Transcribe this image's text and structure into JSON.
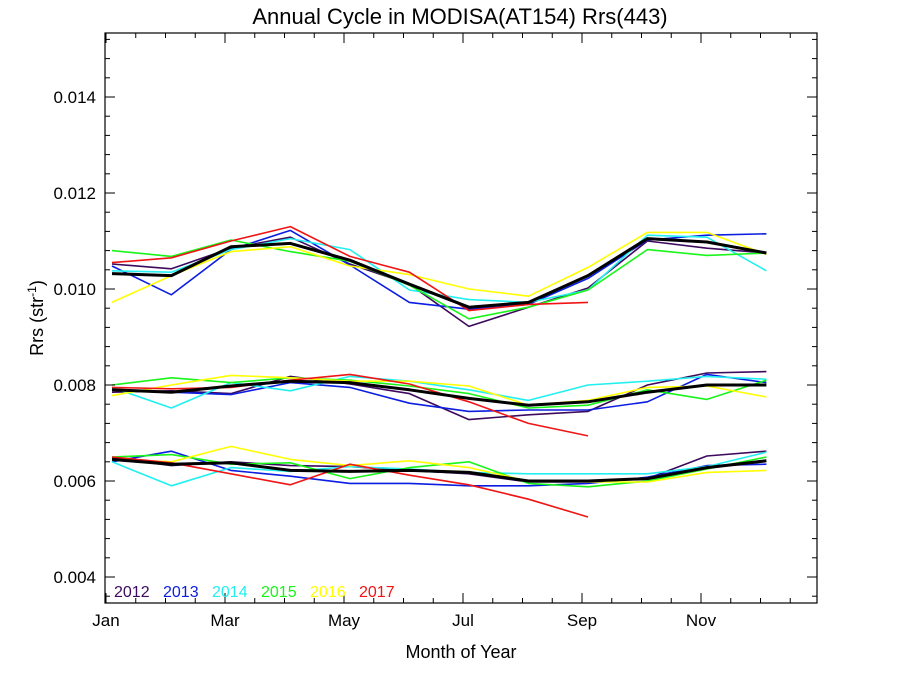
{
  "chart_data": {
    "type": "line",
    "title": "Annual Cycle in MODISA(AT154) Rrs(443)",
    "xlabel": "Month of Year",
    "ylabel": "Rrs (str",
    "ylabel_sup": "-1",
    "ylabel_close": ")",
    "xlim": [
      1,
      12.9
    ],
    "ylim": [
      0.0035,
      0.0153
    ],
    "xticks": [
      {
        "value": 1,
        "label": "Jan"
      },
      {
        "value": 3,
        "label": "Mar"
      },
      {
        "value": 5,
        "label": "May"
      },
      {
        "value": 7,
        "label": "Jul"
      },
      {
        "value": 9,
        "label": "Sep"
      },
      {
        "value": 11,
        "label": "Nov"
      }
    ],
    "yticks": [
      {
        "value": 0.004,
        "label": "0.004"
      },
      {
        "value": 0.006,
        "label": "0.006"
      },
      {
        "value": 0.008,
        "label": "0.008"
      },
      {
        "value": 0.01,
        "label": "0.010"
      },
      {
        "value": 0.012,
        "label": "0.012"
      },
      {
        "value": 0.014,
        "label": "0.014"
      }
    ],
    "grid": false,
    "legend": "bottom-left",
    "x": [
      1.1,
      2.1,
      3.1,
      4.1,
      5.1,
      6.1,
      7.1,
      8.1,
      9.1,
      10.1,
      11.1,
      12.1
    ],
    "groups": [
      {
        "series": [
          {
            "name": "2012",
            "color": "#3d0a5e",
            "values": [
              0.01052,
              0.01042,
              0.01085,
              0.01108,
              0.01052,
              0.0101,
              0.00922,
              0.00962,
              0.01002,
              0.011,
              0.01085,
              0.01075
            ]
          },
          {
            "name": "2013",
            "color": "#0b1de0",
            "values": [
              0.01048,
              0.00988,
              0.01082,
              0.01122,
              0.0105,
              0.00972,
              0.00958,
              0.00968,
              0.01022,
              0.01102,
              0.01112,
              0.01115
            ]
          },
          {
            "name": "2014",
            "color": "#22f0f0",
            "values": [
              0.01038,
              0.01035,
              0.01082,
              0.01105,
              0.01082,
              0.00998,
              0.00978,
              0.00972,
              0.00998,
              0.01112,
              0.01108,
              0.01038
            ]
          },
          {
            "name": "2015",
            "color": "#19f519",
            "values": [
              0.0108,
              0.01068,
              0.01102,
              0.01078,
              0.01058,
              0.01008,
              0.00938,
              0.00962,
              0.00998,
              0.01082,
              0.0107,
              0.01075
            ]
          },
          {
            "name": "2016",
            "color": "#ffff00",
            "values": [
              0.00972,
              0.01028,
              0.01078,
              0.01088,
              0.01048,
              0.0103,
              0.01,
              0.00985,
              0.01045,
              0.01118,
              0.01118,
              0.01072
            ]
          },
          {
            "name": "2017",
            "color": "#f01414",
            "values": [
              0.01055,
              0.01065,
              0.011,
              0.0113,
              0.01068,
              0.01035,
              0.00955,
              0.00968,
              0.00972
            ]
          },
          {
            "name": "",
            "color": "#000000",
            "width": 3,
            "values": [
              0.01032,
              0.01028,
              0.01088,
              0.01095,
              0.0106,
              0.0101,
              0.00962,
              0.00972,
              0.01028,
              0.01105,
              0.01098,
              0.01075
            ]
          }
        ]
      },
      {
        "series": [
          {
            "name": "2012",
            "color": "#3d0a5e",
            "values": [
              0.00785,
              0.00788,
              0.00782,
              0.00818,
              0.00802,
              0.00782,
              0.00728,
              0.00738,
              0.00745,
              0.008,
              0.00825,
              0.00828
            ]
          },
          {
            "name": "2013",
            "color": "#0b1de0",
            "values": [
              0.0079,
              0.00785,
              0.0078,
              0.00805,
              0.00795,
              0.00762,
              0.00745,
              0.00748,
              0.00748,
              0.00765,
              0.00822,
              0.00805
            ]
          },
          {
            "name": "2014",
            "color": "#22f0f0",
            "values": [
              0.00795,
              0.00752,
              0.00805,
              0.00788,
              0.00818,
              0.00808,
              0.0079,
              0.00768,
              0.008,
              0.00808,
              0.00818,
              0.00812
            ]
          },
          {
            "name": "2015",
            "color": "#19f519",
            "values": [
              0.008,
              0.00815,
              0.00805,
              0.00815,
              0.0081,
              0.00798,
              0.00782,
              0.00752,
              0.00758,
              0.0079,
              0.0077,
              0.0081
            ]
          },
          {
            "name": "2016",
            "color": "#ffff00",
            "values": [
              0.00778,
              0.008,
              0.0082,
              0.00815,
              0.00808,
              0.00808,
              0.00798,
              0.00758,
              0.00768,
              0.00795,
              0.00798,
              0.00775
            ]
          },
          {
            "name": "2017",
            "color": "#f01414",
            "values": [
              0.00795,
              0.00792,
              0.00795,
              0.0081,
              0.00822,
              0.00802,
              0.00765,
              0.0072,
              0.00694
            ]
          },
          {
            "name": "",
            "color": "#000000",
            "width": 3,
            "values": [
              0.0079,
              0.00785,
              0.00798,
              0.00808,
              0.00805,
              0.0079,
              0.00772,
              0.00758,
              0.00765,
              0.00785,
              0.008,
              0.008
            ]
          }
        ]
      },
      {
        "series": [
          {
            "name": "2012",
            "color": "#3d0a5e",
            "values": [
              0.00648,
              0.00632,
              0.0064,
              0.00632,
              0.0063,
              0.00622,
              0.00615,
              0.00598,
              0.00598,
              0.00605,
              0.00652,
              0.00662
            ]
          },
          {
            "name": "2013",
            "color": "#0b1de0",
            "values": [
              0.0064,
              0.00662,
              0.00622,
              0.0061,
              0.00595,
              0.00595,
              0.0059,
              0.0059,
              0.00595,
              0.00608,
              0.00632,
              0.00635
            ]
          },
          {
            "name": "2014",
            "color": "#22f0f0",
            "values": [
              0.0064,
              0.0059,
              0.00628,
              0.0062,
              0.0063,
              0.00625,
              0.00618,
              0.00615,
              0.00615,
              0.00615,
              0.0063,
              0.0066
            ]
          },
          {
            "name": "2015",
            "color": "#19f519",
            "values": [
              0.0065,
              0.00655,
              0.00635,
              0.00638,
              0.00605,
              0.00628,
              0.0064,
              0.00595,
              0.00588,
              0.006,
              0.00625,
              0.0065
            ]
          },
          {
            "name": "2016",
            "color": "#ffff00",
            "values": [
              0.00645,
              0.0064,
              0.00672,
              0.00645,
              0.00632,
              0.00642,
              0.00628,
              0.006,
              0.00598,
              0.00598,
              0.00618,
              0.00622
            ]
          },
          {
            "name": "2017",
            "color": "#f01414",
            "values": [
              0.0065,
              0.00638,
              0.00615,
              0.00592,
              0.00635,
              0.00612,
              0.00592,
              0.00562,
              0.00525
            ]
          },
          {
            "name": "",
            "color": "#000000",
            "width": 3,
            "values": [
              0.00645,
              0.00635,
              0.00638,
              0.00622,
              0.0062,
              0.00622,
              0.00618,
              0.006,
              0.006,
              0.00605,
              0.00628,
              0.00642
            ]
          }
        ]
      }
    ],
    "legend_entries": [
      {
        "label": "2012",
        "color": "#3d0a5e"
      },
      {
        "label": "2013",
        "color": "#0b1de0"
      },
      {
        "label": "2014",
        "color": "#22f0f0"
      },
      {
        "label": "2015",
        "color": "#19f519"
      },
      {
        "label": "2016",
        "color": "#ffff00"
      },
      {
        "label": "2017",
        "color": "#f01414"
      }
    ]
  }
}
